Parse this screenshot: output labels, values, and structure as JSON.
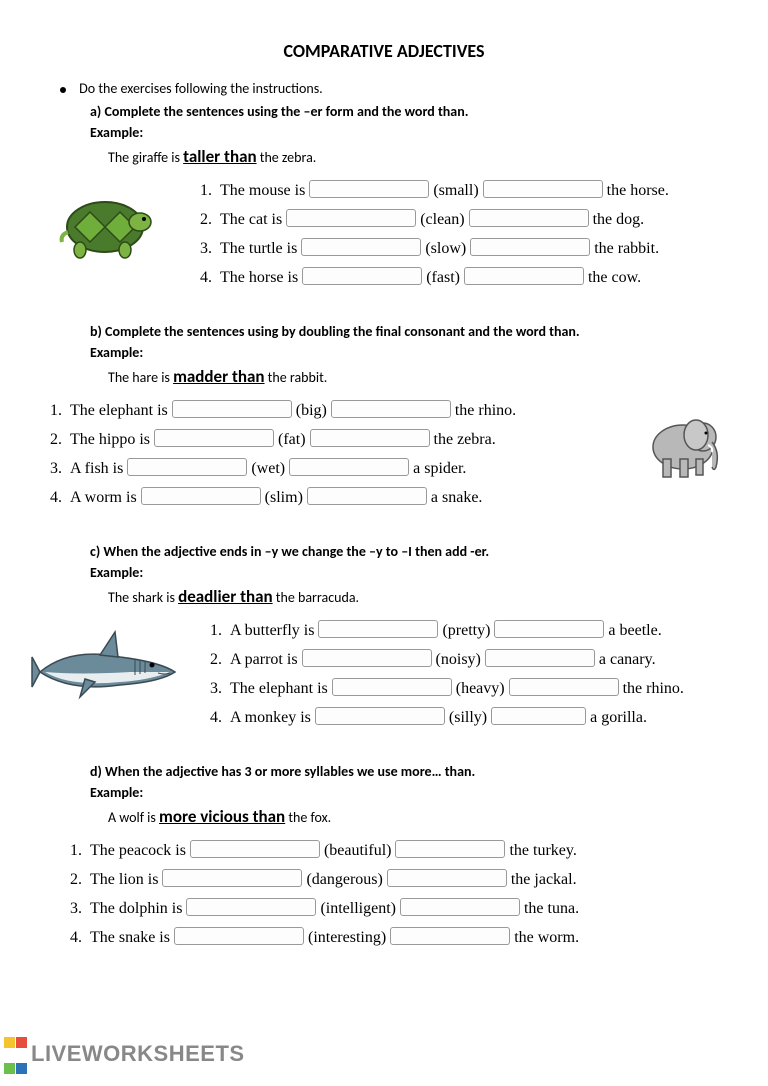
{
  "title": "COMPARATIVE ADJECTIVES",
  "intro": "Do the exercises following the instructions.",
  "sections": {
    "a": {
      "letter": "a)",
      "head": "Complete the sentences using the –er form and the word than.",
      "ex_label": "Example:",
      "ex_pre": "The giraffe is ",
      "ex_em": "taller than",
      "ex_post": " the zebra.",
      "items": [
        {
          "n": "1.",
          "pre": "The mouse is ",
          "mid": " (small) ",
          "post": " the horse.",
          "w1": 120,
          "w2": 120
        },
        {
          "n": "2.",
          "pre": "The cat is ",
          "mid": " (clean) ",
          "post": " the dog.",
          "w1": 130,
          "w2": 120
        },
        {
          "n": "3.",
          "pre": "The turtle is ",
          "mid": " (slow) ",
          "post": " the rabbit.",
          "w1": 120,
          "w2": 120
        },
        {
          "n": "4.",
          "pre": "The horse is ",
          "mid": " (fast) ",
          "post": " the cow.",
          "w1": 120,
          "w2": 120
        }
      ]
    },
    "b": {
      "letter": "b)",
      "head": "Complete the sentences using by doubling the final consonant   and the word than.",
      "ex_label": "Example:",
      "ex_pre": "The hare is ",
      "ex_em": "madder than",
      "ex_post": " the rabbit.",
      "items": [
        {
          "n": "1.",
          "pre": "The elephant is ",
          "mid": " (big) ",
          "post": " the rhino.",
          "w1": 120,
          "w2": 120
        },
        {
          "n": "2.",
          "pre": "The hippo is ",
          "mid": " (fat) ",
          "post": " the zebra.",
          "w1": 120,
          "w2": 120
        },
        {
          "n": "3.",
          "pre": "A fish is ",
          "mid": " (wet) ",
          "post": " a spider.",
          "w1": 120,
          "w2": 120
        },
        {
          "n": "4.",
          "pre": "A worm is ",
          "mid": " (slim) ",
          "post": " a snake.",
          "w1": 120,
          "w2": 120
        }
      ]
    },
    "c": {
      "letter": "c)",
      "head": "When the adjective ends in –y we change the –y to –I then add -er.",
      "ex_label": "Example:",
      "ex_pre": "The shark is ",
      "ex_em": "deadlier than",
      "ex_post": " the barracuda.",
      "items": [
        {
          "n": "1.",
          "pre": "A butterfly is ",
          "mid": " (pretty) ",
          "post": " a beetle.",
          "w1": 120,
          "w2": 110
        },
        {
          "n": "2.",
          "pre": "A parrot is ",
          "mid": " (noisy) ",
          "post": " a canary.",
          "w1": 130,
          "w2": 110
        },
        {
          "n": "3.",
          "pre": "The elephant is ",
          "mid": " (heavy) ",
          "post": " the rhino.",
          "w1": 120,
          "w2": 110
        },
        {
          "n": "4.",
          "pre": "A monkey is ",
          "mid": " (silly) ",
          "post": " a gorilla.",
          "w1": 130,
          "w2": 95
        }
      ]
    },
    "d": {
      "letter": "d)",
      "head": "When the adjective has 3 or more syllables we use more… than.",
      "ex_label": "Example:",
      "ex_pre": "A wolf is ",
      "ex_em": "more vicious than",
      "ex_post": " the fox.",
      "items": [
        {
          "n": "1.",
          "pre": "The peacock is ",
          "mid": " (beautiful) ",
          "post": " the turkey.",
          "w1": 130,
          "w2": 110
        },
        {
          "n": "2.",
          "pre": "The lion is ",
          "mid": " (dangerous) ",
          "post": " the jackal.",
          "w1": 140,
          "w2": 120
        },
        {
          "n": "3.",
          "pre": "The dolphin is ",
          "mid": " (intelligent) ",
          "post": " the tuna.",
          "w1": 130,
          "w2": 120
        },
        {
          "n": "4.",
          "pre": "The snake is ",
          "mid": " (interesting) ",
          "post": " the worm.",
          "w1": 130,
          "w2": 120
        }
      ]
    }
  },
  "watermark": "LIVEWORKSHEETS",
  "wm_colors": [
    "#f4c430",
    "#e84c3d",
    "#6bbf4b",
    "#2d72b8"
  ],
  "images": {
    "turtle_colors": {
      "shell": "#4a7a2c",
      "shell2": "#6fae3a",
      "skin": "#7cb342",
      "outline": "#2d4a18"
    },
    "elephant_colors": {
      "body": "#b8b8b8",
      "outline": "#555",
      "ear": "#c8c8c8"
    },
    "shark_colors": {
      "body": "#6b8a9a",
      "belly": "#e8eef0",
      "outline": "#3a4a52"
    }
  }
}
